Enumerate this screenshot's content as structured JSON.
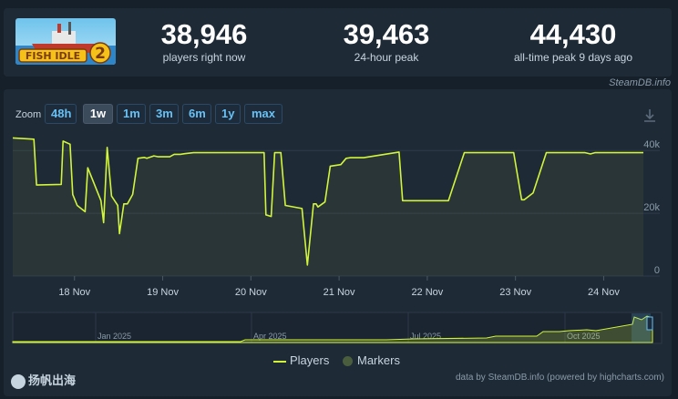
{
  "game": {
    "logo_text": "FISH IDLE",
    "logo_num": "2"
  },
  "stats": [
    {
      "value": "38,946",
      "label": "players right now"
    },
    {
      "value": "39,463",
      "label": "24-hour peak"
    },
    {
      "value": "44,430",
      "label": "all-time peak 9 days ago"
    }
  ],
  "credit_top": "SteamDB.info",
  "zoom": {
    "label": "Zoom",
    "buttons": [
      "48h",
      "1w",
      "1m",
      "3m",
      "6m",
      "1y",
      "max"
    ],
    "active": "1w"
  },
  "legend": {
    "players": "Players",
    "markers": "Markers"
  },
  "credit_bottom": "data by SteamDB.info (powered by highcharts.com)",
  "brand": "扬帆出海",
  "colors": {
    "line": "#d2f53c",
    "bg": "#1f2a37",
    "accent": "#67c1f5"
  },
  "chart_data": {
    "type": "line",
    "title": "",
    "xlabel": "",
    "ylabel": "",
    "ylim": [
      0,
      45000
    ],
    "y_ticks": [
      "0",
      "20k",
      "40k"
    ],
    "x_ticks": [
      "18 Nov",
      "19 Nov",
      "20 Nov",
      "21 Nov",
      "22 Nov",
      "23 Nov",
      "24 Nov"
    ],
    "series": [
      {
        "name": "Players",
        "x": [
          17.3,
          17.54,
          17.57,
          17.85,
          17.87,
          17.95,
          17.98,
          18.03,
          18.12,
          18.15,
          18.3,
          18.33,
          18.37,
          18.42,
          18.49,
          18.51,
          18.56,
          18.6,
          18.63,
          18.66,
          18.72,
          18.79,
          18.82,
          18.9,
          18.95,
          19.08,
          19.13,
          19.2,
          19.25,
          19.35,
          19.45,
          20.14,
          20.15,
          20.17,
          20.23,
          20.27,
          20.34,
          20.39,
          20.58,
          20.64,
          20.71,
          20.74,
          20.76,
          20.84,
          20.9,
          21.02,
          21.08,
          21.13,
          21.28,
          21.68,
          21.72,
          22.17,
          22.24,
          22.42,
          22.48,
          22.95,
          22.98,
          23.07,
          23.1,
          23.2,
          23.35,
          23.72,
          23.79,
          23.85,
          23.9,
          23.95,
          24.45
        ],
        "values": [
          44000,
          43600,
          29000,
          29200,
          43000,
          42000,
          26000,
          22500,
          20500,
          34500,
          24000,
          17000,
          41000,
          25500,
          22500,
          13500,
          23000,
          23000,
          24500,
          26000,
          37500,
          37800,
          37500,
          38300,
          38000,
          38000,
          38800,
          38800,
          39000,
          39300,
          39300,
          39300,
          39300,
          19500,
          19000,
          39300,
          39300,
          22500,
          21500,
          3500,
          23000,
          23000,
          22000,
          23600,
          35000,
          35500,
          37500,
          37700,
          37700,
          39500,
          24000,
          24000,
          24000,
          39300,
          39300,
          39300,
          39300,
          24300,
          24300,
          26500,
          39300,
          39300,
          39300,
          38900,
          39300,
          39300,
          39300
        ]
      }
    ],
    "navigator": {
      "x_ticks": [
        "Jan 2025",
        "Apr 2025",
        "Jul 2025",
        "Oct 2025"
      ]
    }
  }
}
